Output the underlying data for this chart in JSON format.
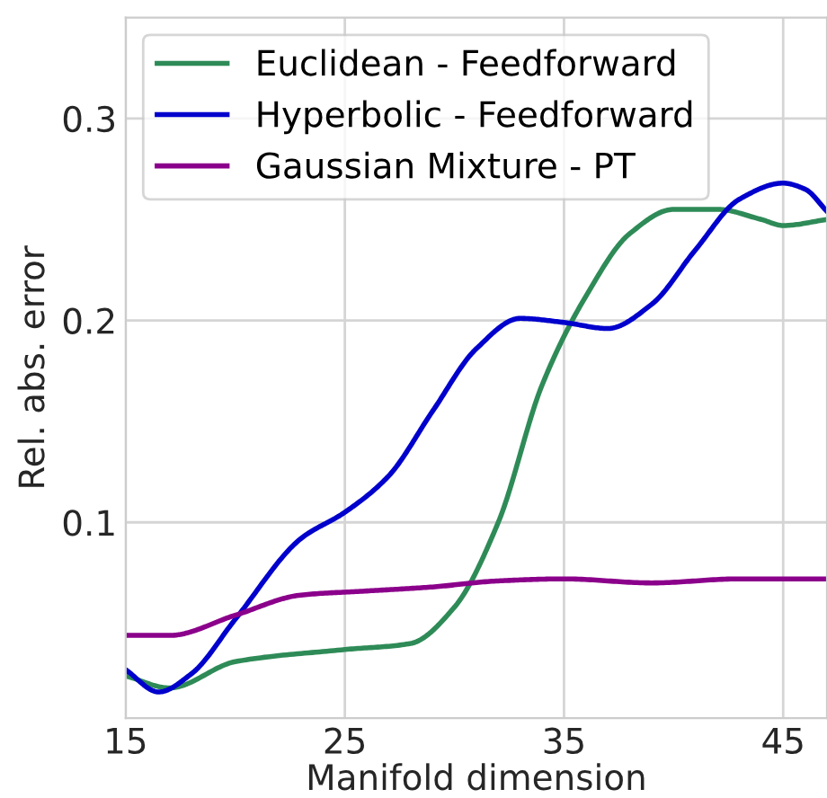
{
  "chart_data": {
    "type": "line",
    "xlabel": "Manifold dimension",
    "ylabel": "Rel. abs. error",
    "xlim": [
      15,
      47
    ],
    "xticks": [
      15,
      25,
      35,
      45
    ],
    "ylim": [
      0.003,
      0.35
    ],
    "yticks": [
      0.1,
      0.2,
      0.3
    ],
    "grid": true,
    "legend": "top left",
    "line_style": "solid",
    "series": [
      {
        "name": "Euclidean - Feedforward",
        "color": "#2e8b57",
        "x": [
          15,
          17,
          20,
          25,
          28,
          30,
          32,
          34,
          36,
          38,
          40,
          42,
          44,
          45,
          47
        ],
        "values": [
          0.024,
          0.018,
          0.031,
          0.037,
          0.04,
          0.058,
          0.1,
          0.168,
          0.212,
          0.243,
          0.255,
          0.255,
          0.25,
          0.247,
          0.25
        ]
      },
      {
        "name": "Hyperbolic - Feedforward",
        "color": "#0000cd",
        "x": [
          15,
          16.5,
          18,
          20,
          23,
          25,
          27,
          29,
          31,
          33,
          35,
          37,
          39,
          41,
          43,
          45,
          46,
          47
        ],
        "values": [
          0.027,
          0.016,
          0.025,
          0.052,
          0.092,
          0.105,
          0.123,
          0.155,
          0.186,
          0.201,
          0.199,
          0.196,
          0.208,
          0.235,
          0.26,
          0.268,
          0.265,
          0.254
        ]
      },
      {
        "name": "Gaussian Mixture - PT",
        "color": "#8b008b",
        "x": [
          15,
          17,
          20,
          23,
          26,
          29,
          32,
          35,
          39,
          43,
          47
        ],
        "values": [
          0.044,
          0.044,
          0.054,
          0.064,
          0.066,
          0.068,
          0.071,
          0.072,
          0.07,
          0.072,
          0.072
        ]
      }
    ]
  }
}
